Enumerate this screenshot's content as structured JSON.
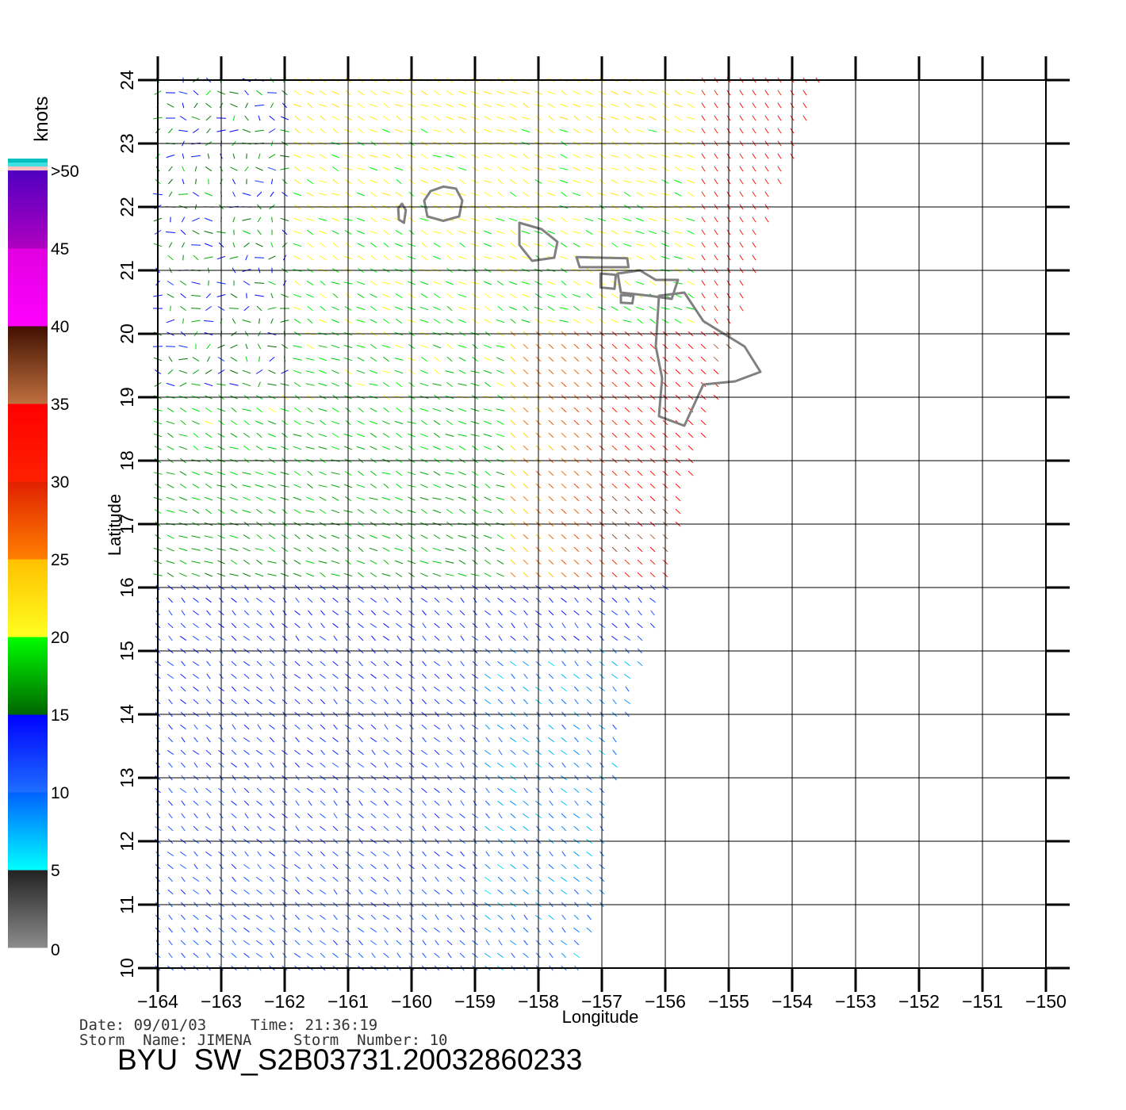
{
  "map": {
    "xlabel": "Longitude",
    "ylabel": "Latitude",
    "lon_range": [
      -164,
      -150
    ],
    "lat_range": [
      10,
      24
    ],
    "lon_ticks": [
      "-164",
      "-163",
      "-162",
      "-161",
      "-160",
      "-159",
      "-158",
      "-157",
      "-156",
      "-155",
      "-154",
      "-153",
      "-152",
      "-151",
      "-150"
    ],
    "lat_ticks": [
      "10",
      "11",
      "12",
      "13",
      "14",
      "15",
      "16",
      "17",
      "18",
      "19",
      "20",
      "21",
      "22",
      "23",
      "24"
    ],
    "coastline_color": "#808080",
    "swath_edge_lon_by_lat": [
      [
        10,
        -157.4
      ],
      [
        11,
        -157.0
      ],
      [
        12,
        -156.9
      ],
      [
        13,
        -156.8
      ],
      [
        14,
        -156.6
      ],
      [
        15,
        -156.3
      ],
      [
        16,
        -156.0
      ],
      [
        17,
        -155.8
      ],
      [
        18,
        -155.5
      ],
      [
        19,
        -155.2
      ],
      [
        20,
        -154.9
      ],
      [
        21,
        -154.6
      ],
      [
        22,
        -154.3
      ],
      [
        23,
        -153.9
      ],
      [
        24,
        -153.6
      ]
    ],
    "islands": [
      {
        "name": "Kauai",
        "center": [
          -159.5,
          22.05
        ]
      },
      {
        "name": "Niihau",
        "center": [
          -160.15,
          21.9
        ]
      },
      {
        "name": "Oahu",
        "center": [
          -158.0,
          21.45
        ]
      },
      {
        "name": "Molokai",
        "center": [
          -157.0,
          21.13
        ]
      },
      {
        "name": "Maui",
        "center": [
          -156.3,
          20.8
        ]
      },
      {
        "name": "Lanai",
        "center": [
          -156.9,
          20.83
        ]
      },
      {
        "name": "Kahoolawe",
        "center": [
          -156.6,
          20.55
        ]
      },
      {
        "name": "Hawaii",
        "center": [
          -155.5,
          19.6
        ]
      }
    ]
  },
  "legend": {
    "unit": "knots",
    "ticks": [
      "0",
      "5",
      "10",
      "15",
      "20",
      "25",
      "30",
      "35",
      "40",
      "45",
      ">50"
    ],
    "bands": [
      {
        "min": 0,
        "max": 5,
        "colors": [
          "#8c8c8c",
          "#222222"
        ]
      },
      {
        "min": 5,
        "max": 10,
        "colors": [
          "#00ffff",
          "#0060ff"
        ]
      },
      {
        "min": 10,
        "max": 15,
        "colors": [
          "#1e6eff",
          "#0000ff"
        ]
      },
      {
        "min": 15,
        "max": 20,
        "colors": [
          "#006400",
          "#00ff00"
        ]
      },
      {
        "min": 20,
        "max": 25,
        "colors": [
          "#ffff20",
          "#ffc000"
        ]
      },
      {
        "min": 25,
        "max": 30,
        "colors": [
          "#ff8000",
          "#e02000"
        ]
      },
      {
        "min": 30,
        "max": 35,
        "colors": [
          "#ff2000",
          "#ff0000"
        ]
      },
      {
        "min": 35,
        "max": 40,
        "colors": [
          "#c07040",
          "#401000"
        ]
      },
      {
        "min": 40,
        "max": 45,
        "colors": [
          "#ff00ff",
          "#e000e0"
        ]
      },
      {
        "min": 45,
        "max": 50,
        "colors": [
          "#b000c0",
          "#5000c0"
        ]
      }
    ],
    "cap_colors": [
      "#00c0c0",
      "#40e0e0",
      "#ffc0c0"
    ]
  },
  "footer": {
    "date_label": "Date: 09/01/03",
    "time_label": "Time: 21:36:19",
    "storm_name_label": "Storm  Name: JIMENA",
    "storm_number_label": "Storm  Number: 10",
    "product": "BYU  SW_S2B03731.20032860233"
  }
}
